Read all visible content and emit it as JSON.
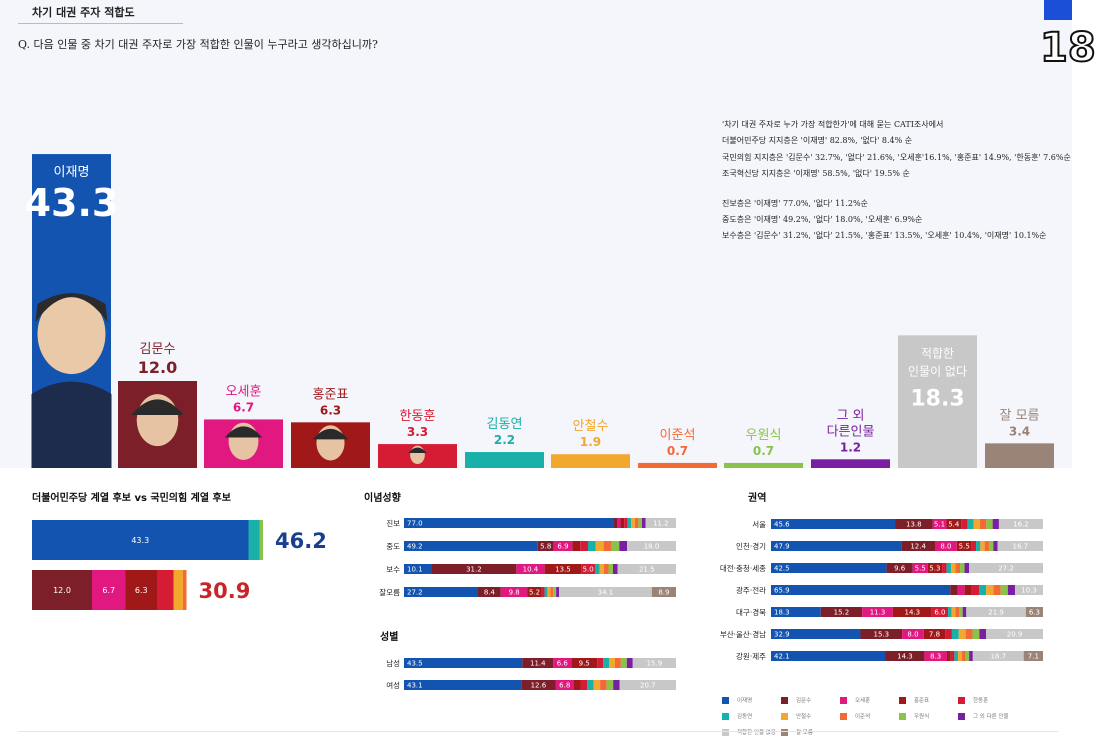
{
  "header": {
    "title": "차기 대권 주자 적합도",
    "question": "Q. 다음 인물 중 차기 대권 주자로 가장 적합한 인물이 누구라고 생각하십니까?",
    "page": "18"
  },
  "notes": [
    "'차기 대권 주자로 누가 가장 적합한가'에 대해 묻는 CATI조사에서",
    "더불어민주당 지지층은 '이재명' 82.8%, '없다' 8.4% 순",
    "국민의힘 지지층은 '김문수' 32.7%, '없다' 21.6%, '오세훈'16.1%, '홍준표' 14.9%, '한동훈' 7.6%순",
    "조국혁신당 지지층은 '이재명' 58.5%, '없다' 19.5% 순",
    "",
    "진보층은 '이재명' 77.0%, '없다' 11.2%순",
    "중도층은 '이재명' 49.2%, '없다' 18.0%, '오세훈' 6.9%순",
    "보수층은 '김문수' 31.2%, '없다' 21.5%, '홍준표' 13.5%, '오세훈' 10.4%, '이재명' 10.1%순"
  ],
  "colors": {
    "이재명": "#1254b0",
    "김문수": "#7c1f28",
    "오세훈": "#e0187f",
    "홍준표": "#a01818",
    "한동훈": "#d61c35",
    "김동연": "#18b0a8",
    "안철수": "#f2a72e",
    "이준석": "#f26a36",
    "우원식": "#8bc34a",
    "그 외 다른인물": "#7b1fa2",
    "적합한 인물 없음": "#c8c8c8",
    "잘 모름": "#9a8478"
  },
  "chart_data": [
    {
      "type": "bar",
      "categories": [
        "이재명",
        "김문수",
        "오세훈",
        "홍준표",
        "한동훈",
        "김동연",
        "안철수",
        "이준석",
        "우원식",
        "그 외\n다른인물",
        "적합한\n인물이 없다",
        "잘 모름"
      ],
      "values": [
        43.3,
        12.0,
        6.7,
        6.3,
        3.3,
        2.2,
        1.9,
        0.7,
        0.7,
        1.2,
        18.3,
        3.4
      ],
      "colors": [
        "#1254b0",
        "#7c1f28",
        "#e0187f",
        "#a01818",
        "#d61c35",
        "#18b0a8",
        "#f2a72e",
        "#f26a36",
        "#8bc34a",
        "#7b1fa2",
        "#c8c8c8",
        "#9a8478"
      ]
    },
    {
      "type": "bar",
      "title": "더불어민주당 계열 후보 vs 국민의힘 계열 후보",
      "rows": [
        {
          "total": "46.2",
          "total_color": "#1a3f8f",
          "segments": [
            {
              "value": 43.3,
              "label": "43.3",
              "color": "#1254b0"
            },
            {
              "value": 2.2,
              "label": "",
              "color": "#18b0a8"
            },
            {
              "value": 0.7,
              "label": "",
              "color": "#8bc34a"
            }
          ]
        },
        {
          "total": "30.9",
          "total_color": "#c8252b",
          "segments": [
            {
              "value": 12.0,
              "label": "12.0",
              "color": "#7c1f28"
            },
            {
              "value": 6.7,
              "label": "6.7",
              "color": "#e0187f"
            },
            {
              "value": 6.3,
              "label": "6.3",
              "color": "#a01818"
            },
            {
              "value": 3.3,
              "label": "",
              "color": "#d61c35"
            },
            {
              "value": 1.9,
              "label": "",
              "color": "#f2a72e"
            },
            {
              "value": 0.7,
              "label": "",
              "color": "#f26a36"
            }
          ]
        }
      ]
    },
    {
      "type": "bar",
      "title": "이념성향",
      "rows": [
        {
          "label": "진보",
          "values": [
            77.0,
            0,
            0,
            0,
            0,
            0,
            0,
            0,
            0,
            0,
            11.2,
            0
          ],
          "labels": [
            "77.0",
            "",
            "",
            "",
            "",
            "",
            "",
            "",
            "",
            "",
            "11.2",
            ""
          ]
        },
        {
          "label": "중도",
          "values": [
            49.2,
            5.8,
            6.9,
            0,
            0,
            0,
            0,
            0,
            0,
            0,
            18.0,
            0
          ],
          "labels": [
            "49.2",
            "5.8",
            "6.9",
            "",
            "",
            "",
            "",
            "",
            "",
            "",
            "18.0",
            ""
          ]
        },
        {
          "label": "보수",
          "values": [
            10.1,
            31.2,
            10.4,
            13.5,
            5.0,
            0,
            0,
            0,
            0,
            0,
            21.5,
            0
          ],
          "labels": [
            "10.1",
            "31.2",
            "10.4",
            "13.5",
            "5.0",
            "",
            "",
            "",
            "",
            "",
            "21.5",
            ""
          ]
        },
        {
          "label": "잘모름",
          "values": [
            27.2,
            8.4,
            9.8,
            5.2,
            0,
            0,
            0,
            0,
            0,
            0,
            34.1,
            8.9
          ],
          "labels": [
            "27.2",
            "8.4",
            "9.8",
            "5.2",
            "",
            "",
            "",
            "",
            "",
            "",
            "34.1",
            "8.9"
          ]
        }
      ]
    },
    {
      "type": "bar",
      "title": "성별",
      "rows": [
        {
          "label": "남성",
          "values": [
            43.5,
            11.4,
            6.6,
            9.5,
            0,
            0,
            0,
            0,
            0,
            0,
            15.9,
            0
          ],
          "labels": [
            "43.5",
            "11.4",
            "6.6",
            "9.5",
            "",
            "",
            "",
            "",
            "",
            "",
            "15.9",
            ""
          ]
        },
        {
          "label": "여성",
          "values": [
            43.1,
            12.6,
            6.8,
            0,
            0,
            0,
            0,
            0,
            0,
            0,
            20.7,
            0
          ],
          "labels": [
            "43.1",
            "12.6",
            "6.8",
            "",
            "",
            "",
            "",
            "",
            "",
            "",
            "20.7",
            ""
          ]
        }
      ]
    },
    {
      "type": "bar",
      "title": "권역",
      "rows": [
        {
          "label": "서울",
          "values": [
            45.6,
            13.8,
            5.1,
            5.4,
            0,
            0,
            0,
            0,
            0,
            0,
            16.2,
            0
          ],
          "labels": [
            "45.6",
            "13.8",
            "5.1",
            "5.4",
            "",
            "",
            "",
            "",
            "",
            "",
            "16.2",
            ""
          ]
        },
        {
          "label": "인천·경기",
          "values": [
            47.9,
            12.4,
            8.0,
            5.5,
            0,
            0,
            0,
            0,
            0,
            0,
            16.7,
            0
          ],
          "labels": [
            "47.9",
            "12.4",
            "8.0",
            "5.5",
            "",
            "",
            "",
            "",
            "",
            "",
            "16.7",
            ""
          ]
        },
        {
          "label": "대전·충청·세종",
          "values": [
            42.5,
            9.6,
            5.5,
            5.3,
            0,
            0,
            0,
            0,
            0,
            0,
            27.2,
            0
          ],
          "labels": [
            "42.5",
            "9.6",
            "5.5",
            "5.3",
            "",
            "",
            "",
            "",
            "",
            "",
            "27.2",
            ""
          ]
        },
        {
          "label": "광주·전라",
          "values": [
            65.9,
            0,
            0,
            0,
            0,
            0,
            0,
            0,
            0,
            0,
            10.3,
            0
          ],
          "labels": [
            "65.9",
            "",
            "",
            "",
            "",
            "",
            "",
            "",
            "",
            "",
            "10.3",
            ""
          ]
        },
        {
          "label": "대구·경북",
          "values": [
            18.3,
            15.2,
            11.3,
            14.3,
            6.0,
            0,
            0,
            0,
            0,
            0,
            21.9,
            6.3
          ],
          "labels": [
            "18.3",
            "15.2",
            "11.3",
            "14.3",
            "6.0",
            "",
            "",
            "",
            "",
            "",
            "21.9",
            "6.3"
          ]
        },
        {
          "label": "부산·울산·경남",
          "values": [
            32.9,
            15.3,
            8.0,
            7.8,
            0,
            0,
            0,
            0,
            0,
            0,
            20.9,
            0
          ],
          "labels": [
            "32.9",
            "15.3",
            "8.0",
            "7.8",
            "",
            "",
            "",
            "",
            "",
            "",
            "20.9",
            ""
          ]
        },
        {
          "label": "강원·제주",
          "values": [
            42.1,
            14.3,
            8.3,
            0,
            0,
            0,
            0,
            0,
            0,
            0,
            18.7,
            7.1
          ],
          "labels": [
            "42.1",
            "14.3",
            "8.3",
            "",
            "",
            "",
            "",
            "",
            "",
            "",
            "18.7",
            "7.1"
          ]
        }
      ]
    }
  ],
  "legend": [
    "이재명",
    "김문수",
    "오세훈",
    "홍준표",
    "한동훈",
    "김동연",
    "안철수",
    "이준석",
    "우원식",
    "그 외 다른 인물",
    "적합한 인물 없음",
    "잘 모름"
  ]
}
